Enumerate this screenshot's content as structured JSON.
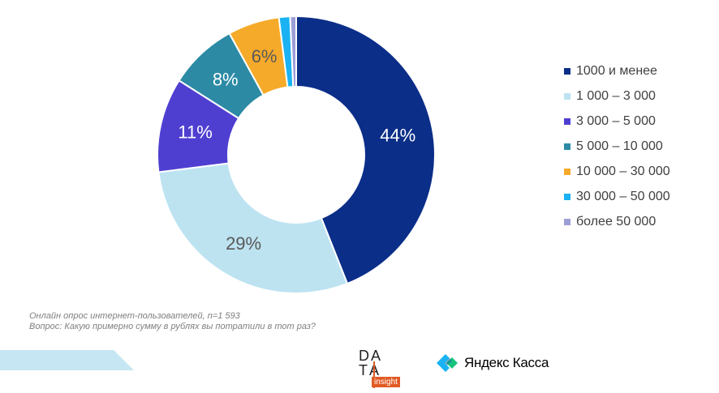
{
  "chart_data": {
    "type": "pie",
    "donut": true,
    "title": "",
    "categories": [
      "1000 и менее",
      "1 000 – 3 000",
      "3 000 – 5 000",
      "5 000 – 10 000",
      "10 000 – 30 000",
      "30 000 – 50 000",
      "более 50 000"
    ],
    "values": [
      44,
      29,
      11,
      8,
      6,
      1.3,
      0.7
    ],
    "data_labels": [
      "44%",
      "29%",
      "11%",
      "8%",
      "6%",
      "",
      ""
    ],
    "colors": [
      "#0b2e88",
      "#bde3f1",
      "#4f3fd1",
      "#2c8aa5",
      "#f6aa2a",
      "#1ab2f2",
      "#9c9fd6"
    ],
    "label_colors": [
      "#ffffff",
      "#595959",
      "#ffffff",
      "#ffffff",
      "#595959",
      "#ffffff",
      "#ffffff"
    ],
    "legend_position": "right"
  },
  "footnote": {
    "line1": "Онлайн опрос интернет-пользователей, n=1 593",
    "line2": "Вопрос: Какую примерно сумму в рублях вы потратили в тот раз?"
  },
  "logos": {
    "data_insight": {
      "row1": [
        "D",
        "A"
      ],
      "row2": [
        "T",
        "A"
      ],
      "tagline": "insight",
      "accent_color": "#e15a24"
    },
    "yandex_kassa": {
      "name": "Яндекс Касса",
      "icon": "yandex-kassa-logo-icon"
    }
  }
}
